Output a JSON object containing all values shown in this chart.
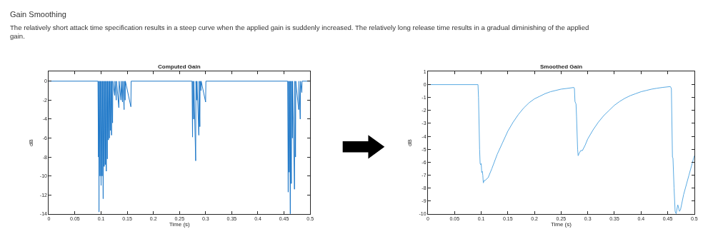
{
  "chart_data": [
    {
      "type": "line",
      "title": "Computed Gain",
      "xlabel": "Time (s)",
      "ylabel": "dB",
      "annotations": [
        "Gain Smoothing",
        "The relatively short attack time specification results in a steep curve when the applied gain is suddenly increased. The relatively long release time results in a gradual diminishing of the applied gain."
      ],
      "x": [
        0,
        0.094,
        0.095,
        0.0955,
        0.096,
        0.0965,
        0.098,
        0.0985,
        0.1,
        0.1005,
        0.102,
        0.1025,
        0.104,
        0.1045,
        0.106,
        0.1065,
        0.108,
        0.1085,
        0.11,
        0.1105,
        0.112,
        0.1125,
        0.114,
        0.1145,
        0.116,
        0.1165,
        0.118,
        0.1185,
        0.12,
        0.1205,
        0.122,
        0.1225,
        0.126,
        0.1265,
        0.129,
        0.1295,
        0.134,
        0.1345,
        0.138,
        0.1385,
        0.141,
        0.1415,
        0.144,
        0.1445,
        0.146,
        0.1465,
        0.157,
        0.1575,
        0.274,
        0.275,
        0.2755,
        0.277,
        0.2775,
        0.281,
        0.2815,
        0.283,
        0.2835,
        0.287,
        0.2875,
        0.289,
        0.2895,
        0.291,
        0.2915,
        0.3,
        0.3005,
        0.457,
        0.458,
        0.4585,
        0.46,
        0.4605,
        0.462,
        0.4625,
        0.464,
        0.4645,
        0.466,
        0.4665,
        0.47,
        0.4705,
        0.472,
        0.4725,
        0.478,
        0.4785,
        0.481,
        0.4815,
        0.484,
        0.4845,
        0.5
      ],
      "series": [
        {
          "color": "#1f78c8",
          "values": [
            0,
            0,
            -8,
            0,
            -13.8,
            0,
            -10,
            0,
            -11,
            0,
            -10,
            0,
            -12.4,
            0,
            -9,
            0,
            -8.8,
            0,
            -9.5,
            0,
            -8.2,
            0,
            -6.2,
            0,
            -6,
            0,
            -5.2,
            0,
            -5.7,
            0,
            -4.4,
            0,
            -1.5,
            0,
            -2,
            0,
            -2.8,
            0,
            -2,
            0,
            -2.2,
            0,
            -3,
            0,
            -2,
            0,
            -2.7,
            0,
            0,
            -5.9,
            0,
            -4,
            0,
            -8.4,
            0,
            -2,
            0,
            -5.7,
            0,
            -4.8,
            0,
            -1,
            0,
            -2.2,
            0,
            0,
            -11.7,
            0,
            -9.6,
            0,
            -14,
            0,
            -10.8,
            0,
            -6,
            0,
            -11.4,
            0,
            -8,
            0,
            -3,
            0,
            -4,
            0,
            -1.2,
            0,
            0
          ]
        }
      ],
      "xlim": [
        0,
        0.5
      ],
      "xticks": [
        0,
        0.05,
        0.1,
        0.15,
        0.2,
        0.25,
        0.3,
        0.35,
        0.4,
        0.45,
        0.5
      ],
      "ylim": [
        -14,
        1
      ],
      "yticks": [
        -14,
        -12,
        -10,
        -8,
        -6,
        -4,
        -2,
        0
      ]
    },
    {
      "type": "line",
      "title": "Smoothed Gain",
      "xlabel": "Time (s)",
      "ylabel": "dB",
      "x": [
        0,
        0.094,
        0.095,
        0.097,
        0.098,
        0.099,
        0.1,
        0.101,
        0.102,
        0.103,
        0.104,
        0.106,
        0.108,
        0.11,
        0.113,
        0.12,
        0.13,
        0.14,
        0.15,
        0.16,
        0.17,
        0.18,
        0.19,
        0.2,
        0.21,
        0.22,
        0.23,
        0.24,
        0.25,
        0.26,
        0.274,
        0.275,
        0.276,
        0.277,
        0.278,
        0.279,
        0.281,
        0.282,
        0.284,
        0.287,
        0.29,
        0.295,
        0.3,
        0.31,
        0.32,
        0.33,
        0.34,
        0.35,
        0.36,
        0.37,
        0.38,
        0.39,
        0.4,
        0.41,
        0.42,
        0.43,
        0.44,
        0.455,
        0.457,
        0.459,
        0.46,
        0.462,
        0.464,
        0.466,
        0.468,
        0.469,
        0.471,
        0.472,
        0.474,
        0.48,
        0.49,
        0.5
      ],
      "series": [
        {
          "color": "#5aaae2",
          "values": [
            0,
            0,
            -1,
            -5,
            -6.1,
            -6.2,
            -6.1,
            -6.8,
            -6.7,
            -7,
            -7.6,
            -7.4,
            -7.4,
            -7.3,
            -7.2,
            -6.5,
            -5.4,
            -4.5,
            -3.6,
            -2.9,
            -2.3,
            -1.8,
            -1.4,
            -1.1,
            -0.9,
            -0.7,
            -0.55,
            -0.45,
            -0.35,
            -0.3,
            -0.22,
            -0.3,
            -1.3,
            -1.4,
            -1.5,
            -2.5,
            -5,
            -5.5,
            -5.3,
            -5.1,
            -5.1,
            -4.7,
            -4.2,
            -3.5,
            -2.9,
            -2.4,
            -2,
            -1.6,
            -1.3,
            -1.05,
            -0.85,
            -0.7,
            -0.55,
            -0.45,
            -0.35,
            -0.28,
            -0.22,
            -0.15,
            -0.3,
            -5.6,
            -5.7,
            -8,
            -9.8,
            -10,
            -9.5,
            -9.3,
            -9.6,
            -9.8,
            -9.7,
            -8.5,
            -7,
            -5.5
          ]
        }
      ],
      "xlim": [
        0,
        0.5
      ],
      "xticks": [
        0,
        0.05,
        0.1,
        0.15,
        0.2,
        0.25,
        0.3,
        0.35,
        0.4,
        0.45,
        0.5
      ],
      "ylim": [
        -10,
        1
      ],
      "yticks": [
        -10,
        -9,
        -8,
        -7,
        -6,
        -5,
        -4,
        -3,
        -2,
        -1,
        0,
        1
      ]
    }
  ]
}
